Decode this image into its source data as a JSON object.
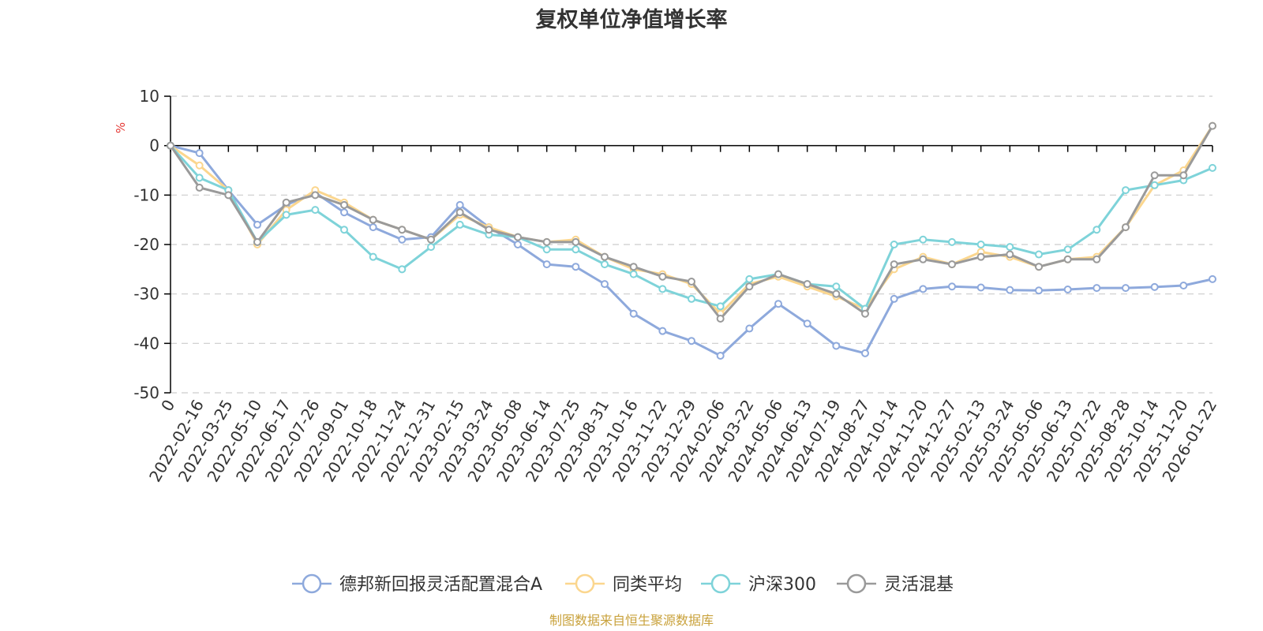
{
  "chart_data": {
    "type": "line",
    "title": "复权单位净值增长率",
    "ylabel": "%",
    "xlabel": "",
    "ylim": [
      -50,
      10
    ],
    "yticks": [
      10,
      0,
      -10,
      -20,
      -30,
      -40,
      -50
    ],
    "ytick_labels": [
      "10",
      "0",
      "-10",
      "-20",
      "-30",
      "-40",
      "-50"
    ],
    "grid": true,
    "legend_position": "bottom",
    "categories": [
      "0",
      "2022-02-16",
      "2022-03-25",
      "2022-05-10",
      "2022-06-17",
      "2022-07-26",
      "2022-09-01",
      "2022-10-18",
      "2022-11-24",
      "2022-12-31",
      "2023-02-15",
      "2023-03-24",
      "2023-05-08",
      "2023-06-14",
      "2023-07-25",
      "2023-08-31",
      "2023-10-16",
      "2023-11-22",
      "2023-12-29",
      "2024-02-06",
      "2024-03-22",
      "2024-05-06",
      "2024-06-13",
      "2024-07-19",
      "2024-08-27",
      "2024-10-14",
      "2024-11-20",
      "2024-12-27",
      "2025-02-13",
      "2025-03-24",
      "2025-05-06",
      "2025-06-13",
      "2025-07-22",
      "2025-08-28",
      "2025-10-14",
      "2025-11-20",
      "2026-01-22"
    ],
    "series": [
      {
        "name": "德邦新回报灵活配置混合A",
        "color": "#8ea9dc",
        "values": [
          0,
          -1.5,
          -9,
          -16,
          -12,
          -9.5,
          -13.5,
          -16.5,
          -19,
          -18.5,
          -12,
          -16.5,
          -20,
          -24,
          -24.5,
          -28,
          -34,
          -37.5,
          -39.5,
          -42.5,
          -37,
          -32,
          -36,
          -40.5,
          -42,
          -31,
          -29,
          -28.5,
          -28.7,
          -29.2,
          -29.3,
          -29.1,
          -28.8,
          -28.8,
          -28.6,
          -28.3,
          -27
        ]
      },
      {
        "name": "同类平均",
        "color": "#fbd68e",
        "values": [
          0,
          -4,
          -9,
          -20,
          -13,
          -9,
          -11.5,
          -15,
          -17,
          -19,
          -14,
          -16.5,
          -18.5,
          -19.5,
          -19,
          -22.5,
          -25,
          -26,
          -28,
          -34,
          -28,
          -26.5,
          -28.5,
          -30.5,
          -33,
          -25,
          -22.5,
          -24,
          -21.5,
          -22.5,
          -24.5,
          -23,
          -22.5,
          -16.5,
          -8,
          -5,
          4
        ]
      },
      {
        "name": "沪深300",
        "color": "#7ed3d9",
        "values": [
          0,
          -6.5,
          -9,
          -19.5,
          -14,
          -13,
          -17,
          -22.5,
          -25,
          -20.5,
          -16,
          -18,
          -18.5,
          -21,
          -21,
          -24,
          -26,
          -29,
          -31,
          -32.5,
          -27,
          -26,
          -28,
          -28.5,
          -33,
          -20,
          -19,
          -19.5,
          -20,
          -20.5,
          -22,
          -21,
          -17,
          -9,
          -8,
          -7,
          -4.5
        ]
      },
      {
        "name": "灵活混基",
        "color": "#9a9a9a",
        "values": [
          0,
          -8.5,
          -10,
          -19.5,
          -11.5,
          -10,
          -12,
          -15,
          -17,
          -19,
          -13.5,
          -17,
          -18.5,
          -19.5,
          -19.5,
          -22.5,
          -24.5,
          -26.5,
          -27.5,
          -35,
          -28.5,
          -26,
          -28,
          -30,
          -34,
          -24,
          -23,
          -24,
          -22.5,
          -22,
          -24.5,
          -23,
          -23,
          -16.5,
          -6,
          -6,
          4
        ]
      }
    ]
  },
  "footer": {
    "source": "制图数据来自恒生聚源数据库",
    "source_color": "#c9a23c"
  },
  "colors": {
    "unit_label": "#e53935"
  }
}
